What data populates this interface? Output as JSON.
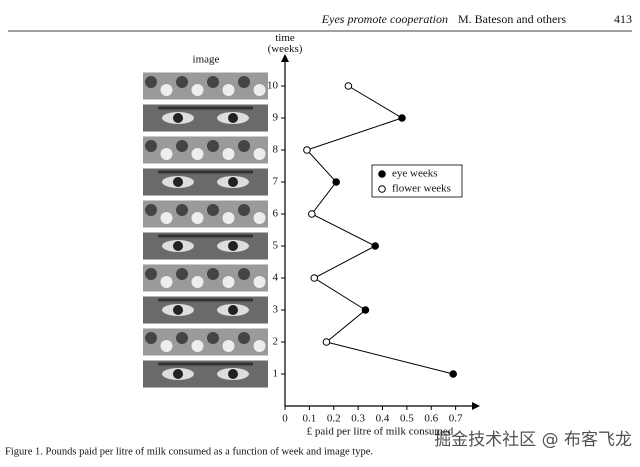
{
  "header": {
    "running_title": "Eyes promote cooperation",
    "authors": "M. Bateson and others",
    "page": "413"
  },
  "figure": {
    "caption": "Figure 1. Pounds paid per litre of milk consumed as a function of week and image type.",
    "image_label": "image"
  },
  "watermark": "掘金技术社区 @ 布客飞龙",
  "chart_data": {
    "type": "line",
    "ylabel": "time (weeks)",
    "xlabel": "£ paid per litre of milk consumed",
    "y": [
      1,
      2,
      3,
      4,
      5,
      6,
      7,
      8,
      9,
      10
    ],
    "series": [
      {
        "name": "eye weeks",
        "color": "#000000",
        "values": [
          0.69,
          null,
          0.33,
          null,
          0.37,
          null,
          0.21,
          null,
          0.48,
          null
        ]
      },
      {
        "name": "flower weeks",
        "color": "#ffffff",
        "values": [
          null,
          0.17,
          null,
          0.12,
          null,
          0.11,
          null,
          0.09,
          null,
          0.26
        ]
      }
    ],
    "xlim": [
      0,
      0.8
    ],
    "xticks": [
      0,
      0.1,
      0.2,
      0.3,
      0.4,
      0.5,
      0.6,
      0.7
    ],
    "ylim": [
      0,
      11
    ],
    "yticks": [
      1,
      2,
      3,
      4,
      5,
      6,
      7,
      8,
      9,
      10
    ],
    "line_color": "#000000",
    "legend": "right"
  }
}
